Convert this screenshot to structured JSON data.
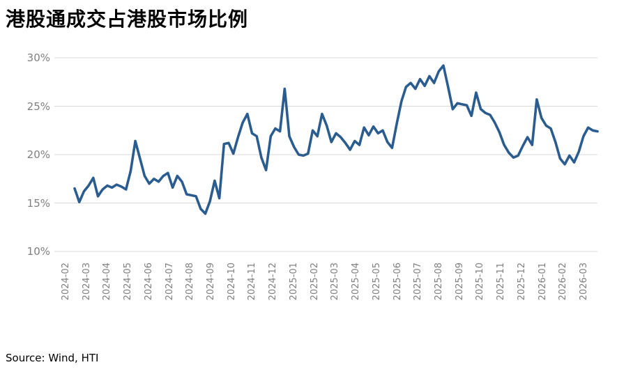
{
  "chart_data": {
    "type": "line",
    "title": "港股通成交占港股市场比例",
    "source": "Source: Wind, HTI",
    "xlabel": "",
    "ylabel": "",
    "ylim": [
      10,
      30
    ],
    "y_ticks": [
      10,
      15,
      20,
      25,
      30
    ],
    "y_tick_labels": [
      "10%",
      "15%",
      "20%",
      "25%",
      "30%"
    ],
    "x_tick_labels": [
      "2024-02",
      "2024-03",
      "2024-04",
      "2024-05",
      "2024-06",
      "2024-07",
      "2024-08",
      "2024-09",
      "2024-10",
      "2024-11",
      "2024-12",
      "2025-01",
      "2025-02",
      "2025-03",
      "2025-04",
      "2025-05",
      "2025-06",
      "2025-07",
      "2025-08",
      "2025-09",
      "2025-10",
      "2025-11",
      "2025-12",
      "2026-01",
      "2026-02",
      "2026-03"
    ],
    "grid": "horizontal",
    "legend": "none",
    "x_cadence": "weekly",
    "x_start": "2024-02",
    "x_end": "2026-03",
    "line_color": "#2B5C8F",
    "label_color": "#7F7F7F",
    "grid_color": "#D9D9D9",
    "series": [
      {
        "name": "港股通成交占港股市场比例",
        "unit": "%",
        "values": [
          16.5,
          15.1,
          16.2,
          16.8,
          17.6,
          15.7,
          16.4,
          16.8,
          16.6,
          16.9,
          16.7,
          16.4,
          18.3,
          21.4,
          19.6,
          17.8,
          17.0,
          17.5,
          17.2,
          17.8,
          18.1,
          16.6,
          17.8,
          17.2,
          15.9,
          15.8,
          15.7,
          14.4,
          13.9,
          15.2,
          17.3,
          15.5,
          21.1,
          21.2,
          20.1,
          21.8,
          23.3,
          24.2,
          22.2,
          21.9,
          19.7,
          18.4,
          21.9,
          22.7,
          22.4,
          26.8,
          21.9,
          20.8,
          20.0,
          19.9,
          20.1,
          22.5,
          21.9,
          24.2,
          23.0,
          21.3,
          22.2,
          21.8,
          21.2,
          20.5,
          21.4,
          21.0,
          22.8,
          22.0,
          22.9,
          22.2,
          22.5,
          21.3,
          20.7,
          23.2,
          25.5,
          27.0,
          27.4,
          26.8,
          27.8,
          27.1,
          28.1,
          27.4,
          28.6,
          29.2,
          27.0,
          24.7,
          25.3,
          25.2,
          25.1,
          24.0,
          26.4,
          24.7,
          24.3,
          24.1,
          23.3,
          22.3,
          21.0,
          20.2,
          19.7,
          19.9,
          20.9,
          21.8,
          21.0,
          25.7,
          23.8,
          23.0,
          22.7,
          21.3,
          19.6,
          19.0,
          19.9,
          19.2,
          20.3,
          21.9,
          22.8,
          22.5,
          22.4
        ]
      }
    ]
  }
}
